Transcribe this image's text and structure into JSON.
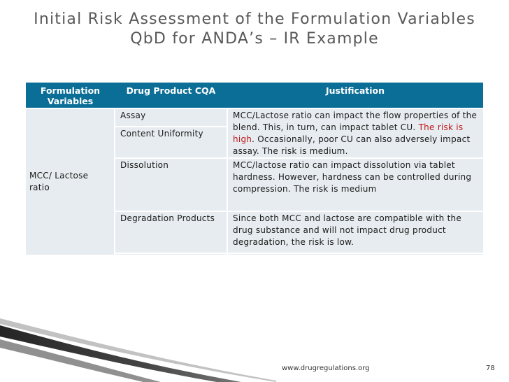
{
  "slide": {
    "title_line1": "Initial Risk Assessment of the Formulation Variables",
    "title_line2": "QbD for ANDA’s – IR Example",
    "footer_url": "www.drugregulations.org",
    "page_number": "78"
  },
  "table": {
    "headers": {
      "col1_line1": "Formulation",
      "col1_line2": "Variables",
      "col2": "Drug Product CQA",
      "col3": "Justification"
    },
    "variable_line1": "MCC/ Lactose",
    "variable_line2": "ratio",
    "rows": {
      "assay_cqa": "Assay",
      "content_uniformity_cqa": "Content Uniformity",
      "cu_justification_part1": "MCC/Lactose ratio can impact the flow properties of the blend. This, in turn, can impact tablet CU.",
      "cu_justification_highlight": "The risk is high",
      "cu_justification_part2": ". Occasionally, poor CU can also adversely impact assay. The risk is medium.",
      "dissolution_cqa": "Dissolution",
      "dissolution_justification": "MCC/lactose ratio can impact dissolution via tablet hardness. However, hardness can be controlled during compression. The risk is medium",
      "degradation_cqa": "Degradation Products",
      "degradation_justification": "Since both MCC and lactose are compatible with the drug substance and will not impact drug product degradation, the risk is low."
    }
  },
  "colors": {
    "header_bg": "#0b6e96",
    "cell_bg": "#e6ecef",
    "highlight_text": "#c0141a",
    "title_text": "#595959"
  }
}
